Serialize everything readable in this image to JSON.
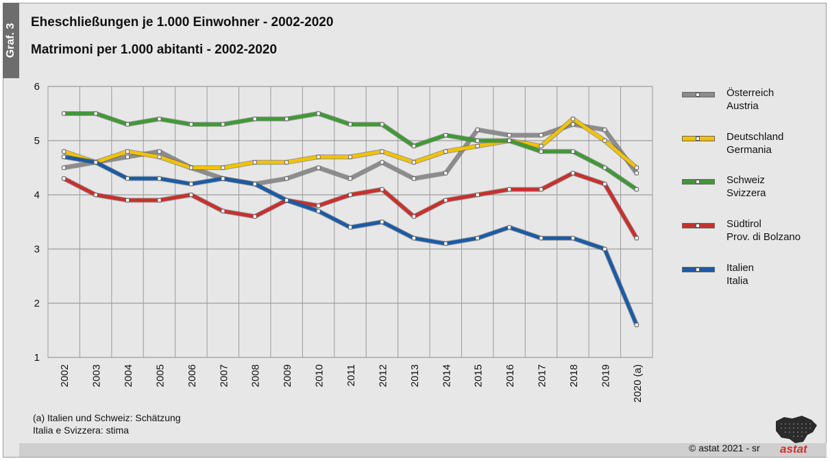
{
  "header": {
    "tag": "Graf. 3",
    "title_de": "Eheschließungen je 1.000 Einwohner - 2002-2020",
    "title_it": "Matrimoni per 1.000 abitanti - 2002-2020"
  },
  "footnote": {
    "line1": "(a) Italien und Schweiz: Schätzung",
    "line2": "Italia e Svizzera: stima"
  },
  "copyright": "©  astat 2021 - sr",
  "logo_text": "astat",
  "legend": [
    {
      "line1": "Österreich",
      "line2": "Austria",
      "color": "#8c8c8c"
    },
    {
      "line1": "Deutschland",
      "line2": "Germania",
      "color": "#f2c200"
    },
    {
      "line1": "Schweiz",
      "line2": "Svizzera",
      "color": "#3f9a35"
    },
    {
      "line1": "Südtirol",
      "line2": "Prov. di Bolzano",
      "color": "#c9302c"
    },
    {
      "line1": "Italien",
      "line2": "Italia",
      "color": "#1a5ba6"
    }
  ],
  "chart_data": {
    "type": "line",
    "categories": [
      "2002",
      "2003",
      "2004",
      "2005",
      "2006",
      "2007",
      "2008",
      "2009",
      "2010",
      "2011",
      "2012",
      "2013",
      "2014",
      "2015",
      "2016",
      "2017",
      "2018",
      "2019",
      "2020 (a)"
    ],
    "ylim": [
      1,
      6
    ],
    "yticks": [
      "1",
      "2",
      "3",
      "4",
      "5",
      "6"
    ],
    "grid": true,
    "legend_position": "right",
    "series": [
      {
        "name": "Österreich / Austria",
        "color": "#8c8c8c",
        "values": [
          4.5,
          4.6,
          4.7,
          4.8,
          4.5,
          4.3,
          4.2,
          4.3,
          4.5,
          4.3,
          4.6,
          4.3,
          4.4,
          5.2,
          5.1,
          5.1,
          5.3,
          5.2,
          4.4
        ]
      },
      {
        "name": "Deutschland / Germania",
        "color": "#f2c200",
        "values": [
          4.8,
          4.6,
          4.8,
          4.7,
          4.5,
          4.5,
          4.6,
          4.6,
          4.7,
          4.7,
          4.8,
          4.6,
          4.8,
          4.9,
          5.0,
          4.9,
          5.4,
          5.0,
          4.5
        ]
      },
      {
        "name": "Schweiz / Svizzera",
        "color": "#3f9a35",
        "values": [
          5.5,
          5.5,
          5.3,
          5.4,
          5.3,
          5.3,
          5.4,
          5.4,
          5.5,
          5.3,
          5.3,
          4.9,
          5.1,
          5.0,
          5.0,
          4.8,
          4.8,
          4.5,
          4.1
        ]
      },
      {
        "name": "Südtirol / Prov. di Bolzano",
        "color": "#c9302c",
        "values": [
          4.3,
          4.0,
          3.9,
          3.9,
          4.0,
          3.7,
          3.6,
          3.9,
          3.8,
          4.0,
          4.1,
          3.6,
          3.9,
          4.0,
          4.1,
          4.1,
          4.4,
          4.2,
          3.2
        ]
      },
      {
        "name": "Italien / Italia",
        "color": "#1a5ba6",
        "values": [
          4.7,
          4.6,
          4.3,
          4.3,
          4.2,
          4.3,
          4.2,
          3.9,
          3.7,
          3.4,
          3.5,
          3.2,
          3.1,
          3.2,
          3.4,
          3.2,
          3.2,
          3.0,
          1.6
        ]
      }
    ]
  }
}
